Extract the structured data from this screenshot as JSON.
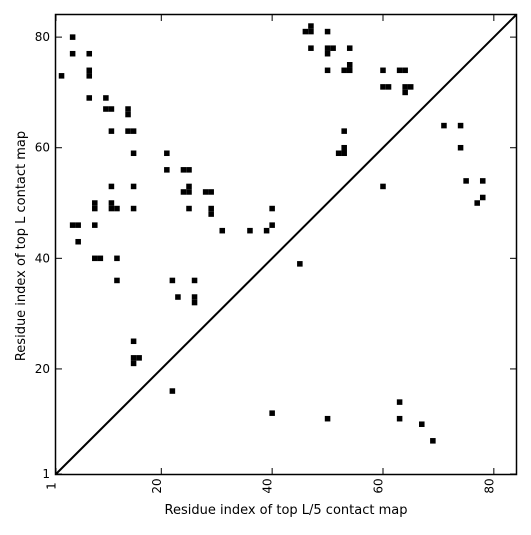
{
  "chart_data": {
    "type": "heatmap",
    "title": "",
    "xlabel": "Residue index of top L/5 contact map",
    "ylabel": "Residue index of top L contact map",
    "xlim": [
      1,
      84
    ],
    "ylim": [
      1,
      84
    ],
    "xticks": [
      1,
      20,
      40,
      60,
      80
    ],
    "xtick_labels": [
      "1",
      "20",
      "40",
      "60",
      "80"
    ],
    "yticks": [
      1,
      20,
      40,
      60,
      80
    ],
    "ytick_labels": [
      "1",
      "20",
      "40",
      "60",
      "80"
    ],
    "grid": false,
    "diagonal_line": true,
    "cells": [
      [
        4,
        80
      ],
      [
        4,
        77
      ],
      [
        7,
        77
      ],
      [
        2,
        73
      ],
      [
        7,
        74
      ],
      [
        7,
        73
      ],
      [
        7,
        69
      ],
      [
        10,
        69
      ],
      [
        10,
        67
      ],
      [
        11,
        67
      ],
      [
        11,
        63
      ],
      [
        14,
        67
      ],
      [
        14,
        66
      ],
      [
        14,
        63
      ],
      [
        15,
        63
      ],
      [
        15,
        59
      ],
      [
        4,
        46
      ],
      [
        5,
        46
      ],
      [
        5,
        43
      ],
      [
        8,
        50
      ],
      [
        8,
        49
      ],
      [
        8,
        46
      ],
      [
        8,
        40
      ],
      [
        9,
        40
      ],
      [
        11,
        53
      ],
      [
        11,
        50
      ],
      [
        11,
        49
      ],
      [
        12,
        49
      ],
      [
        12,
        40
      ],
      [
        12,
        36
      ],
      [
        15,
        53
      ],
      [
        15,
        49
      ],
      [
        15,
        25
      ],
      [
        15,
        22
      ],
      [
        16,
        22
      ],
      [
        15,
        21
      ],
      [
        21,
        59
      ],
      [
        21,
        56
      ],
      [
        24,
        56
      ],
      [
        25,
        56
      ],
      [
        24,
        52
      ],
      [
        25,
        53
      ],
      [
        25,
        52
      ],
      [
        25,
        49
      ],
      [
        22,
        36
      ],
      [
        23,
        33
      ],
      [
        26,
        36
      ],
      [
        26,
        33
      ],
      [
        26,
        32
      ],
      [
        28,
        52
      ],
      [
        29,
        52
      ],
      [
        29,
        49
      ],
      [
        29,
        48
      ],
      [
        31,
        45
      ],
      [
        36,
        45
      ],
      [
        39,
        45
      ],
      [
        40,
        49
      ],
      [
        40,
        46
      ],
      [
        45,
        39
      ],
      [
        22,
        16
      ],
      [
        40,
        12
      ],
      [
        46,
        81
      ],
      [
        47,
        82
      ],
      [
        47,
        81
      ],
      [
        47,
        78
      ],
      [
        50,
        81
      ],
      [
        50,
        78
      ],
      [
        51,
        78
      ],
      [
        50,
        77
      ],
      [
        50,
        74
      ],
      [
        53,
        74
      ],
      [
        54,
        75
      ],
      [
        54,
        74
      ],
      [
        54,
        78
      ],
      [
        52,
        59
      ],
      [
        53,
        60
      ],
      [
        53,
        59
      ],
      [
        53,
        63
      ],
      [
        60,
        74
      ],
      [
        60,
        71
      ],
      [
        61,
        71
      ],
      [
        63,
        74
      ],
      [
        64,
        74
      ],
      [
        64,
        71
      ],
      [
        65,
        71
      ],
      [
        64,
        70
      ],
      [
        60,
        53
      ],
      [
        50,
        11
      ],
      [
        63,
        14
      ],
      [
        63,
        11
      ],
      [
        67,
        10
      ],
      [
        69,
        7
      ],
      [
        71,
        64
      ],
      [
        74,
        64
      ],
      [
        74,
        60
      ],
      [
        75,
        54
      ],
      [
        77,
        50
      ],
      [
        78,
        54
      ],
      [
        78,
        51
      ]
    ]
  }
}
